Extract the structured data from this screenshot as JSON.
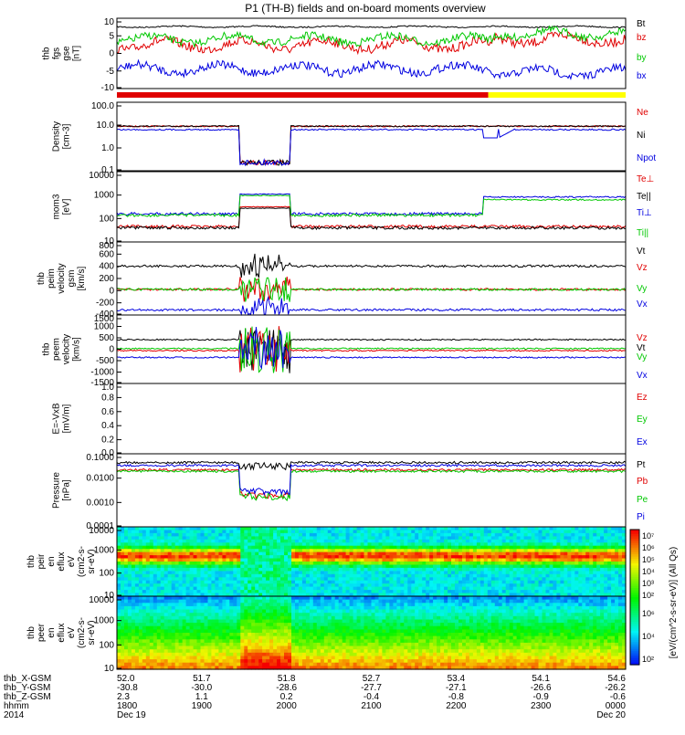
{
  "title": "P1 (TH-B) fields and on-board moments overview",
  "colors": {
    "black": "#000000",
    "red": "#e00000",
    "green": "#00c800",
    "blue": "#0000e0",
    "yellow": "#ffff00"
  },
  "chart_data": [
    {
      "type": "line",
      "id": "fgs",
      "ylabel": [
        "thb",
        "fgs",
        "gse",
        "[nT]"
      ],
      "yticks": [
        "10",
        "5",
        "0",
        "-5",
        "-10"
      ],
      "ylim": [
        -12,
        10
      ],
      "series": [
        {
          "name": "Bt",
          "color": "#000000",
          "level": 6.5,
          "spread": 0.6
        },
        {
          "name": "bz",
          "color": "#e00000",
          "level": 2,
          "spread": 2.5
        },
        {
          "name": "by",
          "color": "#00c800",
          "level": 4,
          "spread": 2
        },
        {
          "name": "bx",
          "color": "#0000e0",
          "level": -3,
          "spread": 2.5
        }
      ]
    },
    {
      "type": "line",
      "id": "density",
      "ylabel": [
        "Density",
        "[cm-3]"
      ],
      "yticks": [
        "100.0",
        "10.0",
        "1.0",
        "0.1"
      ],
      "yscale": "log",
      "series": [
        {
          "name": "Ne",
          "color": "#e00000"
        },
        {
          "name": "Ni",
          "color": "#000000"
        },
        {
          "name": "Npot",
          "color": "#0000e0"
        }
      ]
    },
    {
      "type": "line",
      "id": "temperature",
      "ylabel": [
        "mom3",
        "[eV]"
      ],
      "yticks": [
        "10000",
        "1000",
        "100",
        "10"
      ],
      "yscale": "log",
      "series": [
        {
          "name": "Te⊥",
          "color": "#e00000"
        },
        {
          "name": "Te||",
          "color": "#000000"
        },
        {
          "name": "Ti⊥",
          "color": "#0000e0"
        },
        {
          "name": "Ti||",
          "color": "#00c800"
        }
      ]
    },
    {
      "type": "line",
      "id": "peim-velocity",
      "ylabel": [
        "thb",
        "peim",
        "velocity",
        "gsm",
        "[km/s]"
      ],
      "yticks": [
        "800",
        "600",
        "400",
        "200",
        "0",
        "-200",
        "-400"
      ],
      "ylim": [
        -400,
        800
      ],
      "series": [
        {
          "name": "Vt",
          "color": "#000000"
        },
        {
          "name": "Vz",
          "color": "#e00000"
        },
        {
          "name": "Vy",
          "color": "#00c800"
        },
        {
          "name": "Vx",
          "color": "#0000e0"
        }
      ]
    },
    {
      "type": "line",
      "id": "peem-velocity",
      "ylabel": [
        "thb",
        "peem",
        "velocity",
        "[km/s]"
      ],
      "yticks": [
        "1500",
        "1000",
        "500",
        "0",
        "-500",
        "-1000",
        "-1500"
      ],
      "ylim": [
        -1500,
        1500
      ],
      "series": [
        {
          "name": "Vt",
          "color": "#000000"
        },
        {
          "name": "Vz",
          "color": "#e00000"
        },
        {
          "name": "Vy",
          "color": "#00c800"
        },
        {
          "name": "Vx",
          "color": "#0000e0"
        }
      ]
    },
    {
      "type": "line",
      "id": "efield",
      "ylabel": [
        "E=-VxB",
        "[mV/m]"
      ],
      "yticks": [
        "1.0",
        "0.8",
        "0.6",
        "0.4",
        "0.2",
        "0.0"
      ],
      "ylim": [
        0,
        1
      ],
      "series": [
        {
          "name": "Ez",
          "color": "#e00000"
        },
        {
          "name": "Ey",
          "color": "#00c800"
        },
        {
          "name": "Ex",
          "color": "#0000e0"
        }
      ]
    },
    {
      "type": "line",
      "id": "pressure",
      "ylabel": [
        "Pressure",
        "[nPa]"
      ],
      "yticks": [
        "0.1000",
        "0.0100",
        "0.0010",
        "0.0001"
      ],
      "yscale": "log",
      "series": [
        {
          "name": "Pt",
          "color": "#000000"
        },
        {
          "name": "Pb",
          "color": "#e00000"
        },
        {
          "name": "Pe",
          "color": "#00c800"
        },
        {
          "name": "Pi",
          "color": "#0000e0"
        }
      ]
    },
    {
      "type": "heatmap",
      "id": "peir",
      "ylabel": [
        "thb",
        "peir",
        "en",
        "eflux",
        "eV",
        "(cm2-s-",
        "sr-eV)"
      ],
      "yticks": [
        "10000",
        "1000",
        "100",
        "10"
      ],
      "yscale": "log"
    },
    {
      "type": "heatmap",
      "id": "peer",
      "ylabel": [
        "thb",
        "peer",
        "en",
        "eflux",
        "eV",
        "(cm2-s-",
        "sr-eV)"
      ],
      "yticks": [
        "10000",
        "1000",
        "100",
        "10"
      ],
      "yscale": "log"
    }
  ],
  "colorbar": {
    "label": "[eV/(cm^2-s-sr-eV)] (All Qs)",
    "ticks": [
      "10⁷",
      "10⁶",
      "10⁵",
      "10⁴",
      "10³",
      "10²"
    ],
    "ticks_lower": [
      "10⁶",
      "10⁴",
      "10²"
    ]
  },
  "xaxis": {
    "rows": [
      {
        "label": "thb_X-GSM",
        "values": [
          "52.0",
          "51.7",
          "51.8",
          "52.7",
          "53.4",
          "54.1",
          "54.6"
        ]
      },
      {
        "label": "thb_Y-GSM",
        "values": [
          "-30.8",
          "-30.0",
          "-28.6",
          "-27.7",
          "-27.1",
          "-26.6",
          "-26.2"
        ]
      },
      {
        "label": "thb_Z-GSM",
        "values": [
          "2.3",
          "1.1",
          "0.2",
          "-0.4",
          "-0.8",
          "-0.9",
          "-0.6"
        ]
      },
      {
        "label": "hhmm",
        "values": [
          "1800",
          "1900",
          "2000",
          "2100",
          "2200",
          "2300",
          "0000"
        ]
      },
      {
        "label": "2014",
        "values": [
          "Dec 19",
          "",
          "",
          "",
          "",
          "",
          "Dec 20"
        ]
      }
    ]
  }
}
